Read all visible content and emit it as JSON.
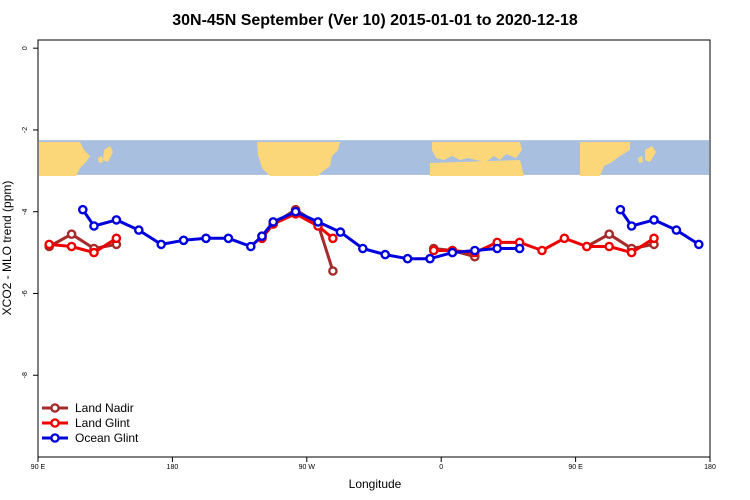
{
  "chart_data": {
    "type": "line",
    "title": "30N-45N September (Ver 10)   2015-01-01 to 2020-12-18",
    "xlabel": "Longitude",
    "ylabel": "XCO2 - MLO trend (ppm)",
    "xlim": [
      0,
      450
    ],
    "ylim": [
      -10,
      0.2
    ],
    "x_ticks": [
      {
        "value": 0,
        "label": "90 E"
      },
      {
        "value": 90,
        "label": "180"
      },
      {
        "value": 180,
        "label": "90 W"
      },
      {
        "value": 270,
        "label": "0"
      },
      {
        "value": 360,
        "label": "90 E"
      },
      {
        "value": 450,
        "label": "180"
      }
    ],
    "y_ticks": [
      {
        "value": 0,
        "label": "0"
      },
      {
        "value": -2,
        "label": "-2"
      },
      {
        "value": -4,
        "label": "-4"
      },
      {
        "value": -6,
        "label": "-6"
      },
      {
        "value": -8,
        "label": "-8"
      }
    ],
    "map_band": {
      "y_top": -2.25,
      "y_bottom": -3.1,
      "land_color": "#fcd779",
      "ocean_color": "#a8bfe0"
    },
    "legend_position": "bottom-left",
    "series": [
      {
        "name": "Land Nadir",
        "color": "#a52a2a",
        "segments": [
          [
            [
              7.5,
              -4.85
            ],
            [
              22.5,
              -4.55
            ],
            [
              37.5,
              -4.9
            ],
            [
              52.5,
              -4.8
            ]
          ],
          [
            [
              150,
              -4.6
            ],
            [
              157.5,
              -4.3
            ],
            [
              172.5,
              -3.95
            ],
            [
              187.5,
              -4.3
            ],
            [
              197.5,
              -5.45
            ]
          ],
          [
            [
              265,
              -4.9
            ],
            [
              277.5,
              -4.95
            ],
            [
              292.5,
              -5.1
            ]
          ],
          [
            [
              367.5,
              -4.85
            ],
            [
              382.5,
              -4.55
            ],
            [
              397.5,
              -4.9
            ],
            [
              412.5,
              -4.8
            ]
          ]
        ]
      },
      {
        "name": "Land Glint",
        "color": "#ee0000",
        "segments": [
          [
            [
              7.5,
              -4.8
            ],
            [
              22.5,
              -4.85
            ],
            [
              37.5,
              -5.0
            ],
            [
              52.5,
              -4.65
            ]
          ],
          [
            [
              150,
              -4.65
            ],
            [
              157.5,
              -4.3
            ],
            [
              172.5,
              -4.05
            ],
            [
              187.5,
              -4.35
            ],
            [
              197.5,
              -4.65
            ]
          ],
          [
            [
              265,
              -4.95
            ],
            [
              277.5,
              -4.95
            ],
            [
              292.5,
              -5.0
            ],
            [
              307.5,
              -4.75
            ],
            [
              322.5,
              -4.75
            ],
            [
              337.5,
              -4.95
            ],
            [
              352.5,
              -4.65
            ],
            [
              367.5,
              -4.85
            ],
            [
              382.5,
              -4.85
            ],
            [
              397.5,
              -5.0
            ],
            [
              412.5,
              -4.65
            ]
          ]
        ]
      },
      {
        "name": "Ocean Glint",
        "color": "#0000dd",
        "segments": [
          [
            [
              30,
              -3.95
            ],
            [
              37.5,
              -4.35
            ],
            [
              52.5,
              -4.2
            ],
            [
              67.5,
              -4.45
            ],
            [
              82.5,
              -4.8
            ],
            [
              97.5,
              -4.7
            ],
            [
              112.5,
              -4.65
            ],
            [
              127.5,
              -4.65
            ],
            [
              142.5,
              -4.85
            ],
            [
              150,
              -4.6
            ],
            [
              157.5,
              -4.25
            ],
            [
              172.5,
              -4.0
            ],
            [
              187.5,
              -4.25
            ],
            [
              202.5,
              -4.5
            ],
            [
              217.5,
              -4.9
            ],
            [
              232.5,
              -5.05
            ],
            [
              247.5,
              -5.15
            ],
            [
              262.5,
              -5.15
            ],
            [
              277.5,
              -5.0
            ],
            [
              292.5,
              -4.95
            ],
            [
              307.5,
              -4.9
            ],
            [
              322.5,
              -4.9
            ]
          ],
          [
            [
              390,
              -3.95
            ],
            [
              397.5,
              -4.35
            ],
            [
              412.5,
              -4.2
            ],
            [
              427.5,
              -4.45
            ],
            [
              442.5,
              -4.8
            ]
          ]
        ]
      }
    ]
  }
}
